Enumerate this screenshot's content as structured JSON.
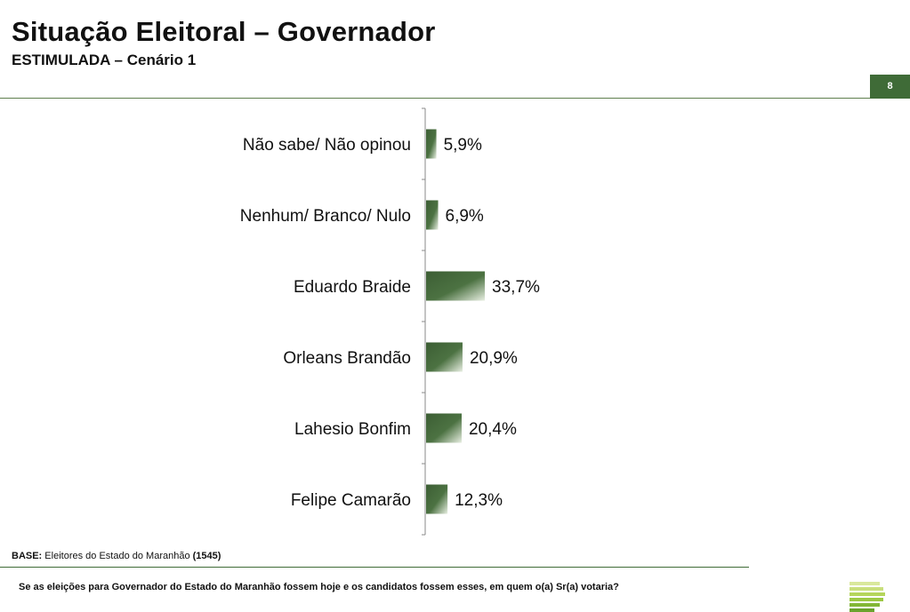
{
  "header": {
    "title": "Situação Eleitoral – Governador",
    "subtitle": "ESTIMULADA – Cenário 1",
    "page_number": "8"
  },
  "footer": {
    "base_label": "BASE:",
    "base_text": "Eleitores do Estado do Maranhão",
    "base_count": "(1545)",
    "question": "Se as eleições para Governador do Estado do Maranhão fossem hoje e os candidatos fossem esses, em quem o(a) Sr(a) votaria?"
  },
  "colors": {
    "accent": "#3f6b37",
    "bar_dark": "#3c5e34",
    "bar_light": "#e8efe2"
  },
  "chart_data": {
    "type": "bar",
    "orientation": "horizontal",
    "title": "Situação Eleitoral – Governador",
    "categories": [
      "Não sabe/ Não opinou",
      "Nenhum/ Branco/ Nulo",
      "Eduardo Braide",
      "Orleans Brandão",
      "Lahesio Bonfim",
      "Felipe Camarão"
    ],
    "values": [
      5.9,
      6.9,
      33.7,
      20.9,
      20.4,
      12.3
    ],
    "labels": [
      "5,9%",
      "6,9%",
      "33,7%",
      "20,9%",
      "20,4%",
      "12,3%"
    ],
    "xlim": [
      0,
      100
    ],
    "grid": false,
    "legend": "none"
  },
  "logo": {
    "name": "institute-logo"
  }
}
